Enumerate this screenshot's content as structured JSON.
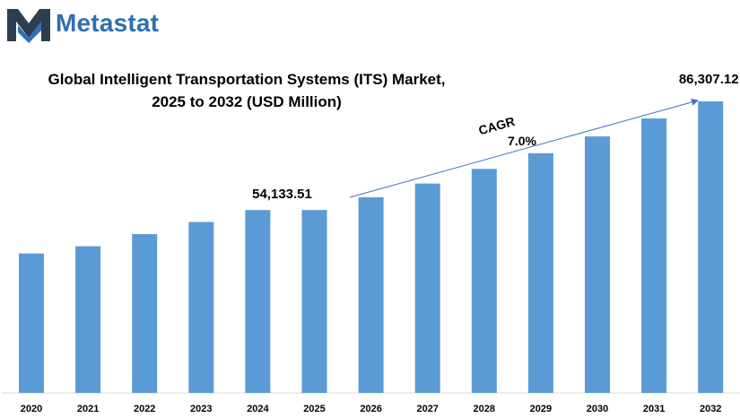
{
  "brand": {
    "name": "Metastat",
    "logo_icon": "m-logo-icon",
    "color": "#2f6fb3"
  },
  "title": {
    "line1": "Global  Intelligent  Transportation  Systems (ITS) Market,",
    "line2": "2025 to 2032 (USD Million)"
  },
  "chart_data": {
    "type": "bar",
    "categories": [
      "2020",
      "2021",
      "2022",
      "2023",
      "2024",
      "2025",
      "2026",
      "2027",
      "2028",
      "2029",
      "2030",
      "2031",
      "2032"
    ],
    "values": [
      41268,
      43420,
      47000,
      50600,
      54133.51,
      54133.51,
      57922.86,
      61977.46,
      66315.88,
      70958.0,
      75925.06,
      81239.81,
      86307.12
    ],
    "ylim": [
      0,
      90000
    ],
    "bar_color": "#5b9bd5",
    "grid": false,
    "data_labels": [
      {
        "category": "2025",
        "text": "54,133.51"
      },
      {
        "category": "2032",
        "text": "86,307.12"
      }
    ],
    "annotation": {
      "label": "CAGR",
      "value": "7.0%",
      "from": "2025",
      "to": "2032"
    },
    "xlabel": "",
    "ylabel": ""
  }
}
